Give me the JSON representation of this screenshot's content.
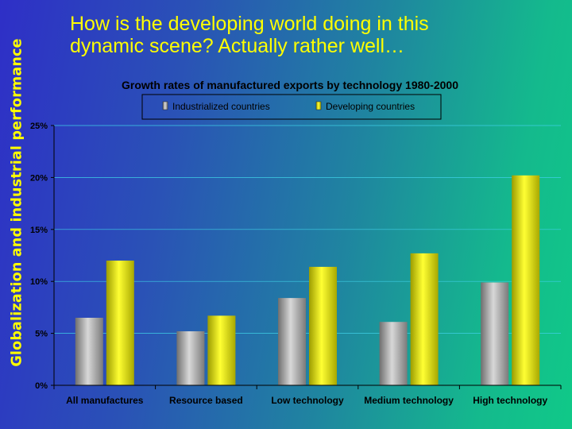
{
  "slide": {
    "side_title": "Globalization and industrial performance",
    "headline_line1": "How is the developing world doing in this",
    "headline_line2": "dynamic scene? Actually rather well…"
  },
  "chart_data": {
    "type": "bar",
    "title": "Growth rates of manufactured exports by technology 1980-2000",
    "categories": [
      "All manufactures",
      "Resource based",
      "Low technology",
      "Medium technology",
      "High technology"
    ],
    "series": [
      {
        "name": "Industrialized countries",
        "color": "#a8a8a8",
        "values": [
          6.5,
          5.2,
          8.4,
          6.1,
          9.9
        ]
      },
      {
        "name": "Developing countries",
        "color": "#f2f200",
        "values": [
          12.0,
          6.7,
          11.4,
          12.7,
          20.2
        ]
      }
    ],
    "ylim": [
      0,
      25
    ],
    "yticks": [
      0,
      5,
      10,
      15,
      20,
      25
    ],
    "ytick_labels": [
      "0%",
      "5%",
      "10%",
      "15%",
      "20%",
      "25%"
    ],
    "xlabel": "",
    "ylabel": "",
    "grid": true,
    "legend": "top"
  }
}
